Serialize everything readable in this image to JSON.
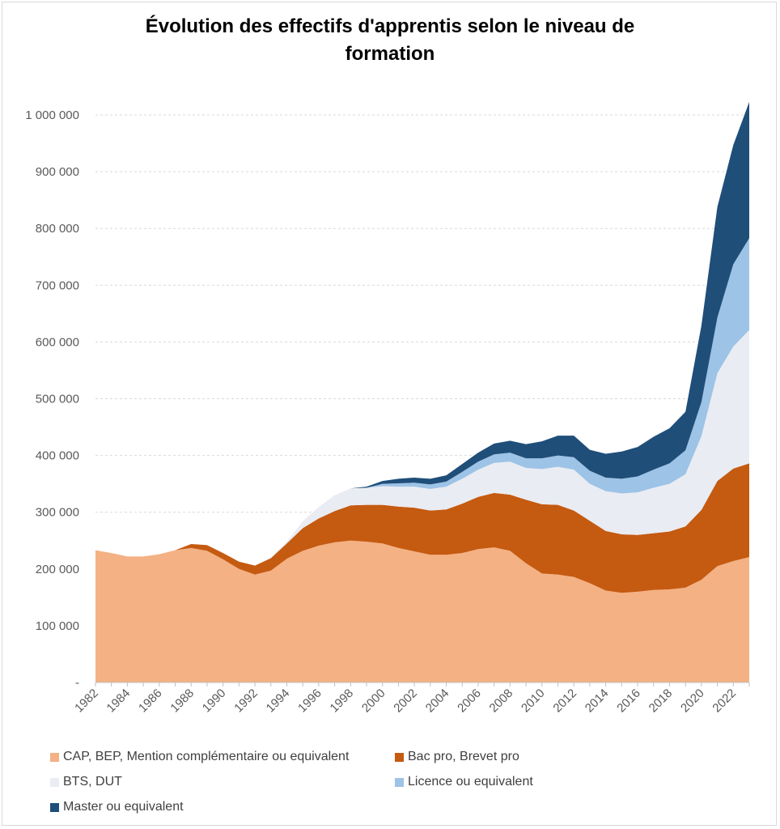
{
  "title_lines": [
    "Évolution des effectifs d'apprentis selon le niveau de",
    "formation"
  ],
  "y_tick_labels": [
    "-",
    "100 000",
    "200 000",
    "300 000",
    "400 000",
    "500 000",
    "600 000",
    "700 000",
    "800 000",
    "900 000",
    "1 000 000"
  ],
  "x_tick_labels": [
    "1982",
    "1984",
    "1986",
    "1988",
    "1990",
    "1992",
    "1994",
    "1996",
    "1998",
    "2000",
    "2002",
    "2004",
    "2006",
    "2008",
    "2010",
    "2012",
    "2014",
    "2016",
    "2018",
    "2020",
    "2022"
  ],
  "legend": [
    {
      "label": "CAP, BEP, Mention complémentaire ou equivalent",
      "color": "#f4b183"
    },
    {
      "label": "Bac pro, Brevet pro",
      "color": "#c55a11"
    },
    {
      "label": "BTS, DUT",
      "color": "#e9ecf2"
    },
    {
      "label": "Licence ou equivalent",
      "color": "#9dc3e6"
    },
    {
      "label": "Master ou equivalent",
      "color": "#1f4e79"
    }
  ],
  "chart_data": {
    "type": "area",
    "stacked": true,
    "title": "Évolution des effectifs d'apprentis selon le niveau de formation",
    "xlabel": "",
    "ylabel": "",
    "ylim": [
      0,
      1000000
    ],
    "x": [
      1982,
      1983,
      1984,
      1985,
      1986,
      1987,
      1988,
      1989,
      1990,
      1991,
      1992,
      1993,
      1994,
      1995,
      1996,
      1997,
      1998,
      1999,
      2000,
      2001,
      2002,
      2003,
      2004,
      2005,
      2006,
      2007,
      2008,
      2009,
      2010,
      2011,
      2012,
      2013,
      2014,
      2015,
      2016,
      2017,
      2018,
      2019,
      2020,
      2021,
      2022,
      2023
    ],
    "series": [
      {
        "name": "CAP, BEP, Mention complémentaire ou equivalent",
        "color": "#f4b183",
        "values": [
          233000,
          228000,
          222000,
          222000,
          226000,
          233000,
          237000,
          232000,
          217000,
          200000,
          190000,
          197000,
          218000,
          232000,
          241000,
          247000,
          250000,
          248000,
          245000,
          237000,
          231000,
          225000,
          225000,
          228000,
          235000,
          238000,
          232000,
          210000,
          192000,
          190000,
          186000,
          175000,
          162000,
          158000,
          160000,
          163000,
          164000,
          167000,
          181000,
          205000,
          214000,
          221000
        ]
      },
      {
        "name": "Bac pro, Brevet pro",
        "color": "#c55a11",
        "values": [
          0,
          0,
          0,
          0,
          0,
          0,
          7000,
          10000,
          11000,
          13000,
          16000,
          22000,
          27000,
          40000,
          48000,
          55000,
          62000,
          65000,
          68000,
          73000,
          77000,
          78000,
          80000,
          87000,
          92000,
          96000,
          99000,
          112000,
          122000,
          123000,
          117000,
          110000,
          105000,
          103000,
          100000,
          100000,
          102000,
          108000,
          123000,
          150000,
          163000,
          165000
        ]
      },
      {
        "name": "BTS, DUT",
        "color": "#e9ecf2",
        "values": [
          0,
          0,
          0,
          0,
          0,
          0,
          0,
          0,
          0,
          0,
          0,
          2000,
          3000,
          12000,
          20000,
          28000,
          30000,
          30000,
          33000,
          35000,
          37000,
          38000,
          40000,
          44000,
          48000,
          53000,
          58000,
          56000,
          62000,
          67000,
          72000,
          65000,
          70000,
          72000,
          75000,
          80000,
          84000,
          92000,
          130000,
          190000,
          215000,
          235000
        ]
      },
      {
        "name": "Licence ou equivalent",
        "color": "#9dc3e6",
        "values": [
          0,
          0,
          0,
          0,
          0,
          0,
          0,
          0,
          0,
          0,
          0,
          0,
          0,
          0,
          0,
          0,
          0,
          0,
          4000,
          6000,
          7000,
          8000,
          9000,
          12000,
          14000,
          15000,
          16000,
          17000,
          19000,
          20000,
          22000,
          23000,
          24000,
          26000,
          28000,
          32000,
          36000,
          42000,
          60000,
          98000,
          145000,
          162000
        ]
      },
      {
        "name": "Master ou equivalent",
        "color": "#1f4e79",
        "values": [
          0,
          0,
          0,
          0,
          0,
          0,
          0,
          0,
          0,
          0,
          0,
          0,
          0,
          0,
          0,
          0,
          0,
          2000,
          5000,
          8000,
          9000,
          10000,
          11000,
          14000,
          16000,
          19000,
          21000,
          25000,
          30000,
          35000,
          38000,
          37000,
          42000,
          48000,
          52000,
          58000,
          62000,
          68000,
          135000,
          195000,
          210000,
          240000
        ]
      }
    ]
  }
}
